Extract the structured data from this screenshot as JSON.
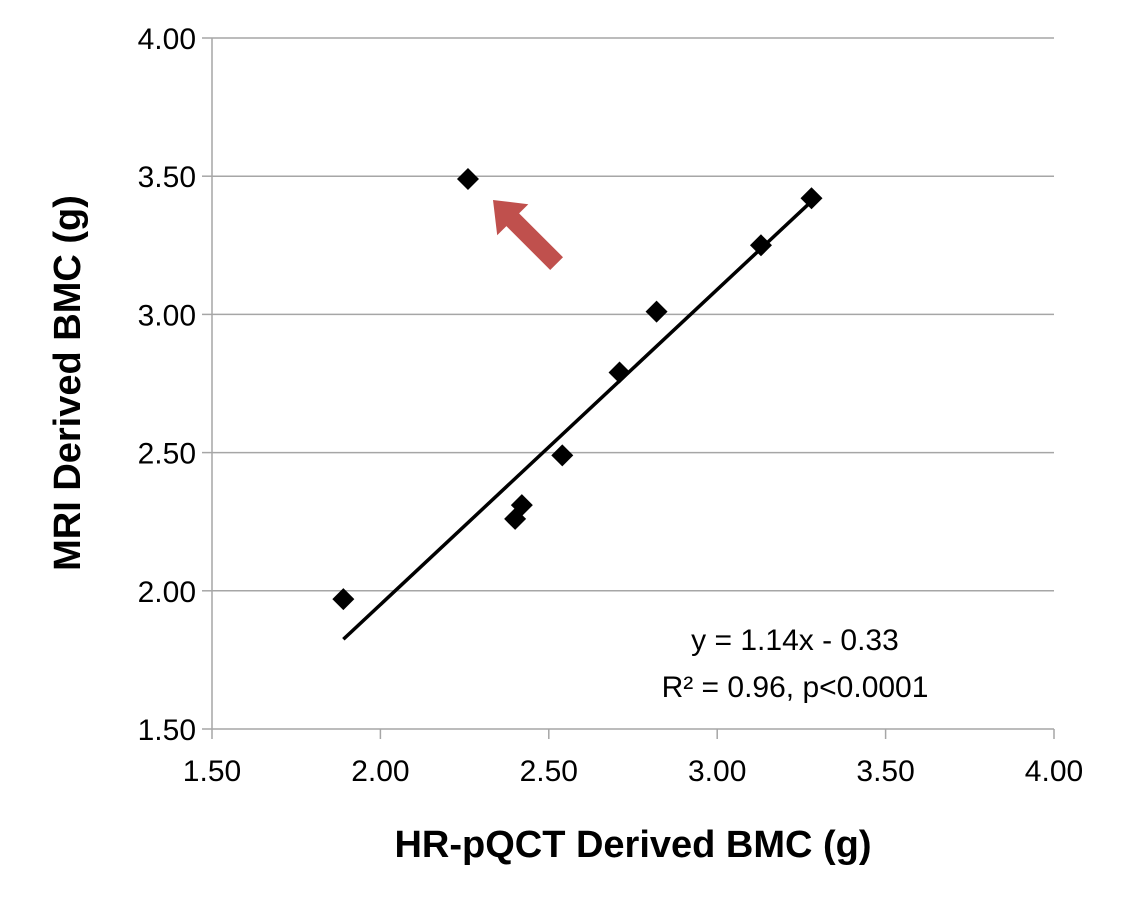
{
  "chart_data": {
    "type": "scatter",
    "xlabel": "HR-pQCT Derived BMC (g)",
    "ylabel": "MRI Derived BMC (g)",
    "xlim": [
      1.5,
      4.0
    ],
    "ylim": [
      1.5,
      4.0
    ],
    "x_ticks": [
      "1.50",
      "2.00",
      "2.50",
      "3.00",
      "3.50",
      "4.00"
    ],
    "y_ticks": [
      "1.50",
      "2.00",
      "2.50",
      "3.00",
      "3.50",
      "4.00"
    ],
    "grid": "horizontal",
    "series": [
      {
        "points": [
          {
            "x": 1.89,
            "y": 1.97
          },
          {
            "x": 2.26,
            "y": 3.49
          },
          {
            "x": 2.4,
            "y": 2.26
          },
          {
            "x": 2.42,
            "y": 2.31
          },
          {
            "x": 2.54,
            "y": 2.49
          },
          {
            "x": 2.71,
            "y": 2.79
          },
          {
            "x": 2.82,
            "y": 3.01
          },
          {
            "x": 3.13,
            "y": 3.25
          },
          {
            "x": 3.28,
            "y": 3.42
          }
        ]
      }
    ],
    "trendline": {
      "slope": 1.14,
      "intercept": -0.33,
      "x_range": [
        1.89,
        3.28
      ]
    },
    "annotations": {
      "equation": "y = 1.14x - 0.33",
      "r2": "R² = 0.96, p<0.0001"
    },
    "outlier_arrow": {
      "points_to": {
        "x": 2.26,
        "y": 3.49
      }
    },
    "colors": {
      "marker": "#000000",
      "grid": "#a6a6a6",
      "arrow": "#c0504d",
      "trendline": "#000000"
    }
  }
}
